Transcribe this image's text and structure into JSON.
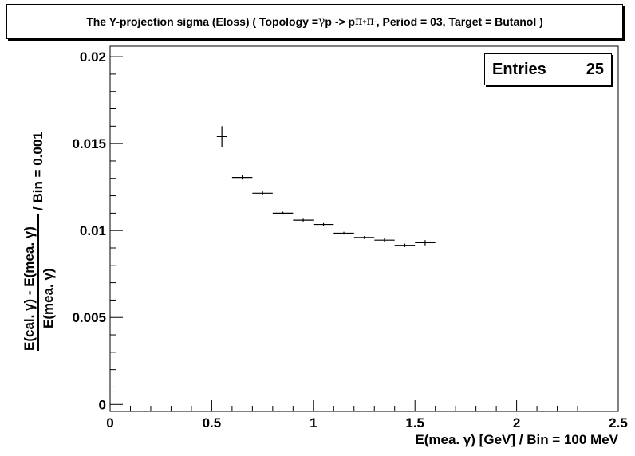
{
  "title": {
    "prefix": "The Y-projection sigma (Eloss) ( Topology = ",
    "topology_gamma": "γ",
    "topology_mid": " p -> p ",
    "pi1": "π",
    "pi1_charge": "+",
    "pi2": " π",
    "pi2_charge": "-",
    "suffix": " , Period = 03, Target = Butanol )"
  },
  "stats": {
    "label": "Entries",
    "value": "25"
  },
  "chart_data": {
    "type": "scatter",
    "title": "The Y-projection sigma (Eloss) ( Topology = γ p -> p π+ π- , Period = 03, Target = Butanol )",
    "xlabel": "E(mea. γ) [GeV] / Bin = 100 MeV",
    "ylabel": {
      "numerator": "E(cal. γ) - E(mea. γ)",
      "denominator": "E(mea. γ)",
      "suffix": "/ Bin = 0.001"
    },
    "xlim": [
      0,
      2.5
    ],
    "ylim": [
      -0.0004,
      0.0206
    ],
    "x_ticks": [
      {
        "value": 0,
        "label": "0"
      },
      {
        "value": 0.5,
        "label": "0.5"
      },
      {
        "value": 1,
        "label": "1"
      },
      {
        "value": 1.5,
        "label": "1.5"
      },
      {
        "value": 2,
        "label": "2"
      },
      {
        "value": 2.5,
        "label": "2.5"
      }
    ],
    "y_ticks": [
      {
        "value": 0,
        "label": "0"
      },
      {
        "value": 0.005,
        "label": "0.005"
      },
      {
        "value": 0.01,
        "label": "0.01"
      },
      {
        "value": 0.015,
        "label": "0.015"
      },
      {
        "value": 0.02,
        "label": "0.02"
      }
    ],
    "bin_half_width": 0.05,
    "points": [
      {
        "x": 0.55,
        "y": 0.0154,
        "yerr": 0.0006,
        "xerr": 0.025
      },
      {
        "x": 0.65,
        "y": 0.01305,
        "yerr": 0.00012
      },
      {
        "x": 0.75,
        "y": 0.01215,
        "yerr": 0.0001
      },
      {
        "x": 0.85,
        "y": 0.011,
        "yerr": 8e-05
      },
      {
        "x": 0.95,
        "y": 0.0106,
        "yerr": 8e-05
      },
      {
        "x": 1.05,
        "y": 0.01035,
        "yerr": 8e-05
      },
      {
        "x": 1.15,
        "y": 0.00985,
        "yerr": 8e-05
      },
      {
        "x": 1.25,
        "y": 0.0096,
        "yerr": 8e-05
      },
      {
        "x": 1.35,
        "y": 0.00945,
        "yerr": 0.0001
      },
      {
        "x": 1.45,
        "y": 0.00915,
        "yerr": 0.0001
      },
      {
        "x": 1.55,
        "y": 0.0093,
        "yerr": 0.00015
      }
    ],
    "grid": false,
    "stats_placement": "top-right"
  }
}
